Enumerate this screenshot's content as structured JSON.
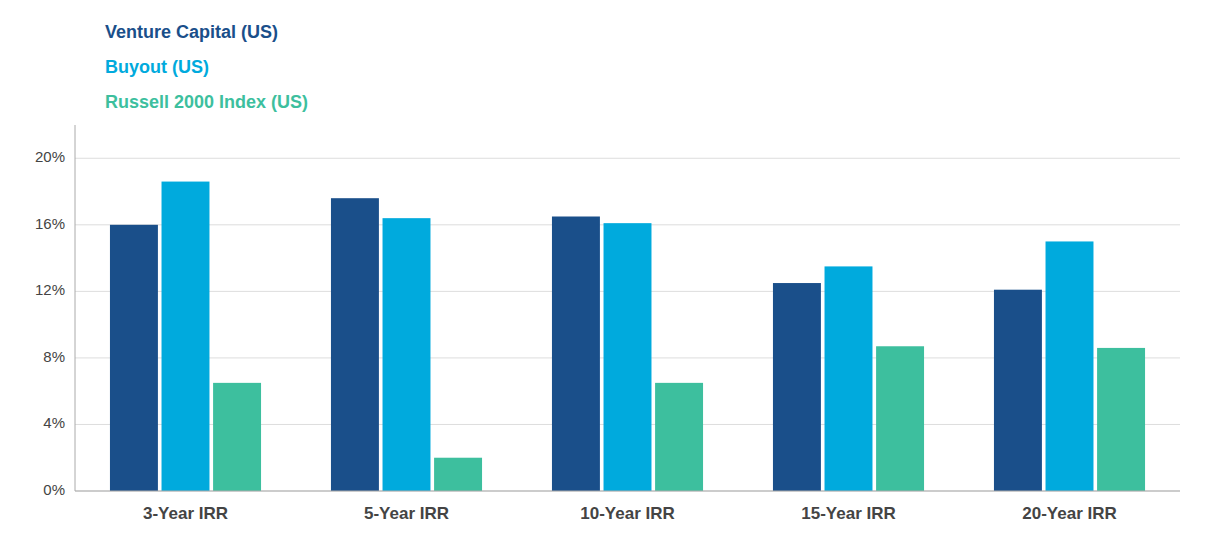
{
  "chart_data": {
    "type": "bar",
    "categories": [
      "3-Year IRR",
      "5-Year IRR",
      "10-Year IRR",
      "15-Year IRR",
      "20-Year IRR"
    ],
    "series": [
      {
        "name": "Venture Capital (US)",
        "color": "#1a4f8a",
        "values": [
          16.0,
          17.6,
          16.5,
          12.5,
          12.1
        ]
      },
      {
        "name": "Buyout (US)",
        "color": "#00aadd",
        "values": [
          18.6,
          16.4,
          16.1,
          13.5,
          15.0
        ]
      },
      {
        "name": "Russell 2000 Index (US)",
        "color": "#3dbf9e",
        "values": [
          6.5,
          2.0,
          6.5,
          8.7,
          8.6
        ]
      }
    ],
    "ylim": [
      0,
      22
    ],
    "yticks": [
      {
        "value": 0,
        "label": "0%"
      },
      {
        "value": 4,
        "label": "4%"
      },
      {
        "value": 8,
        "label": "8%"
      },
      {
        "value": 12,
        "label": "12%"
      },
      {
        "value": 16,
        "label": "16%"
      },
      {
        "value": 20,
        "label": "20%"
      }
    ],
    "grid": true,
    "legend": "upper left"
  }
}
